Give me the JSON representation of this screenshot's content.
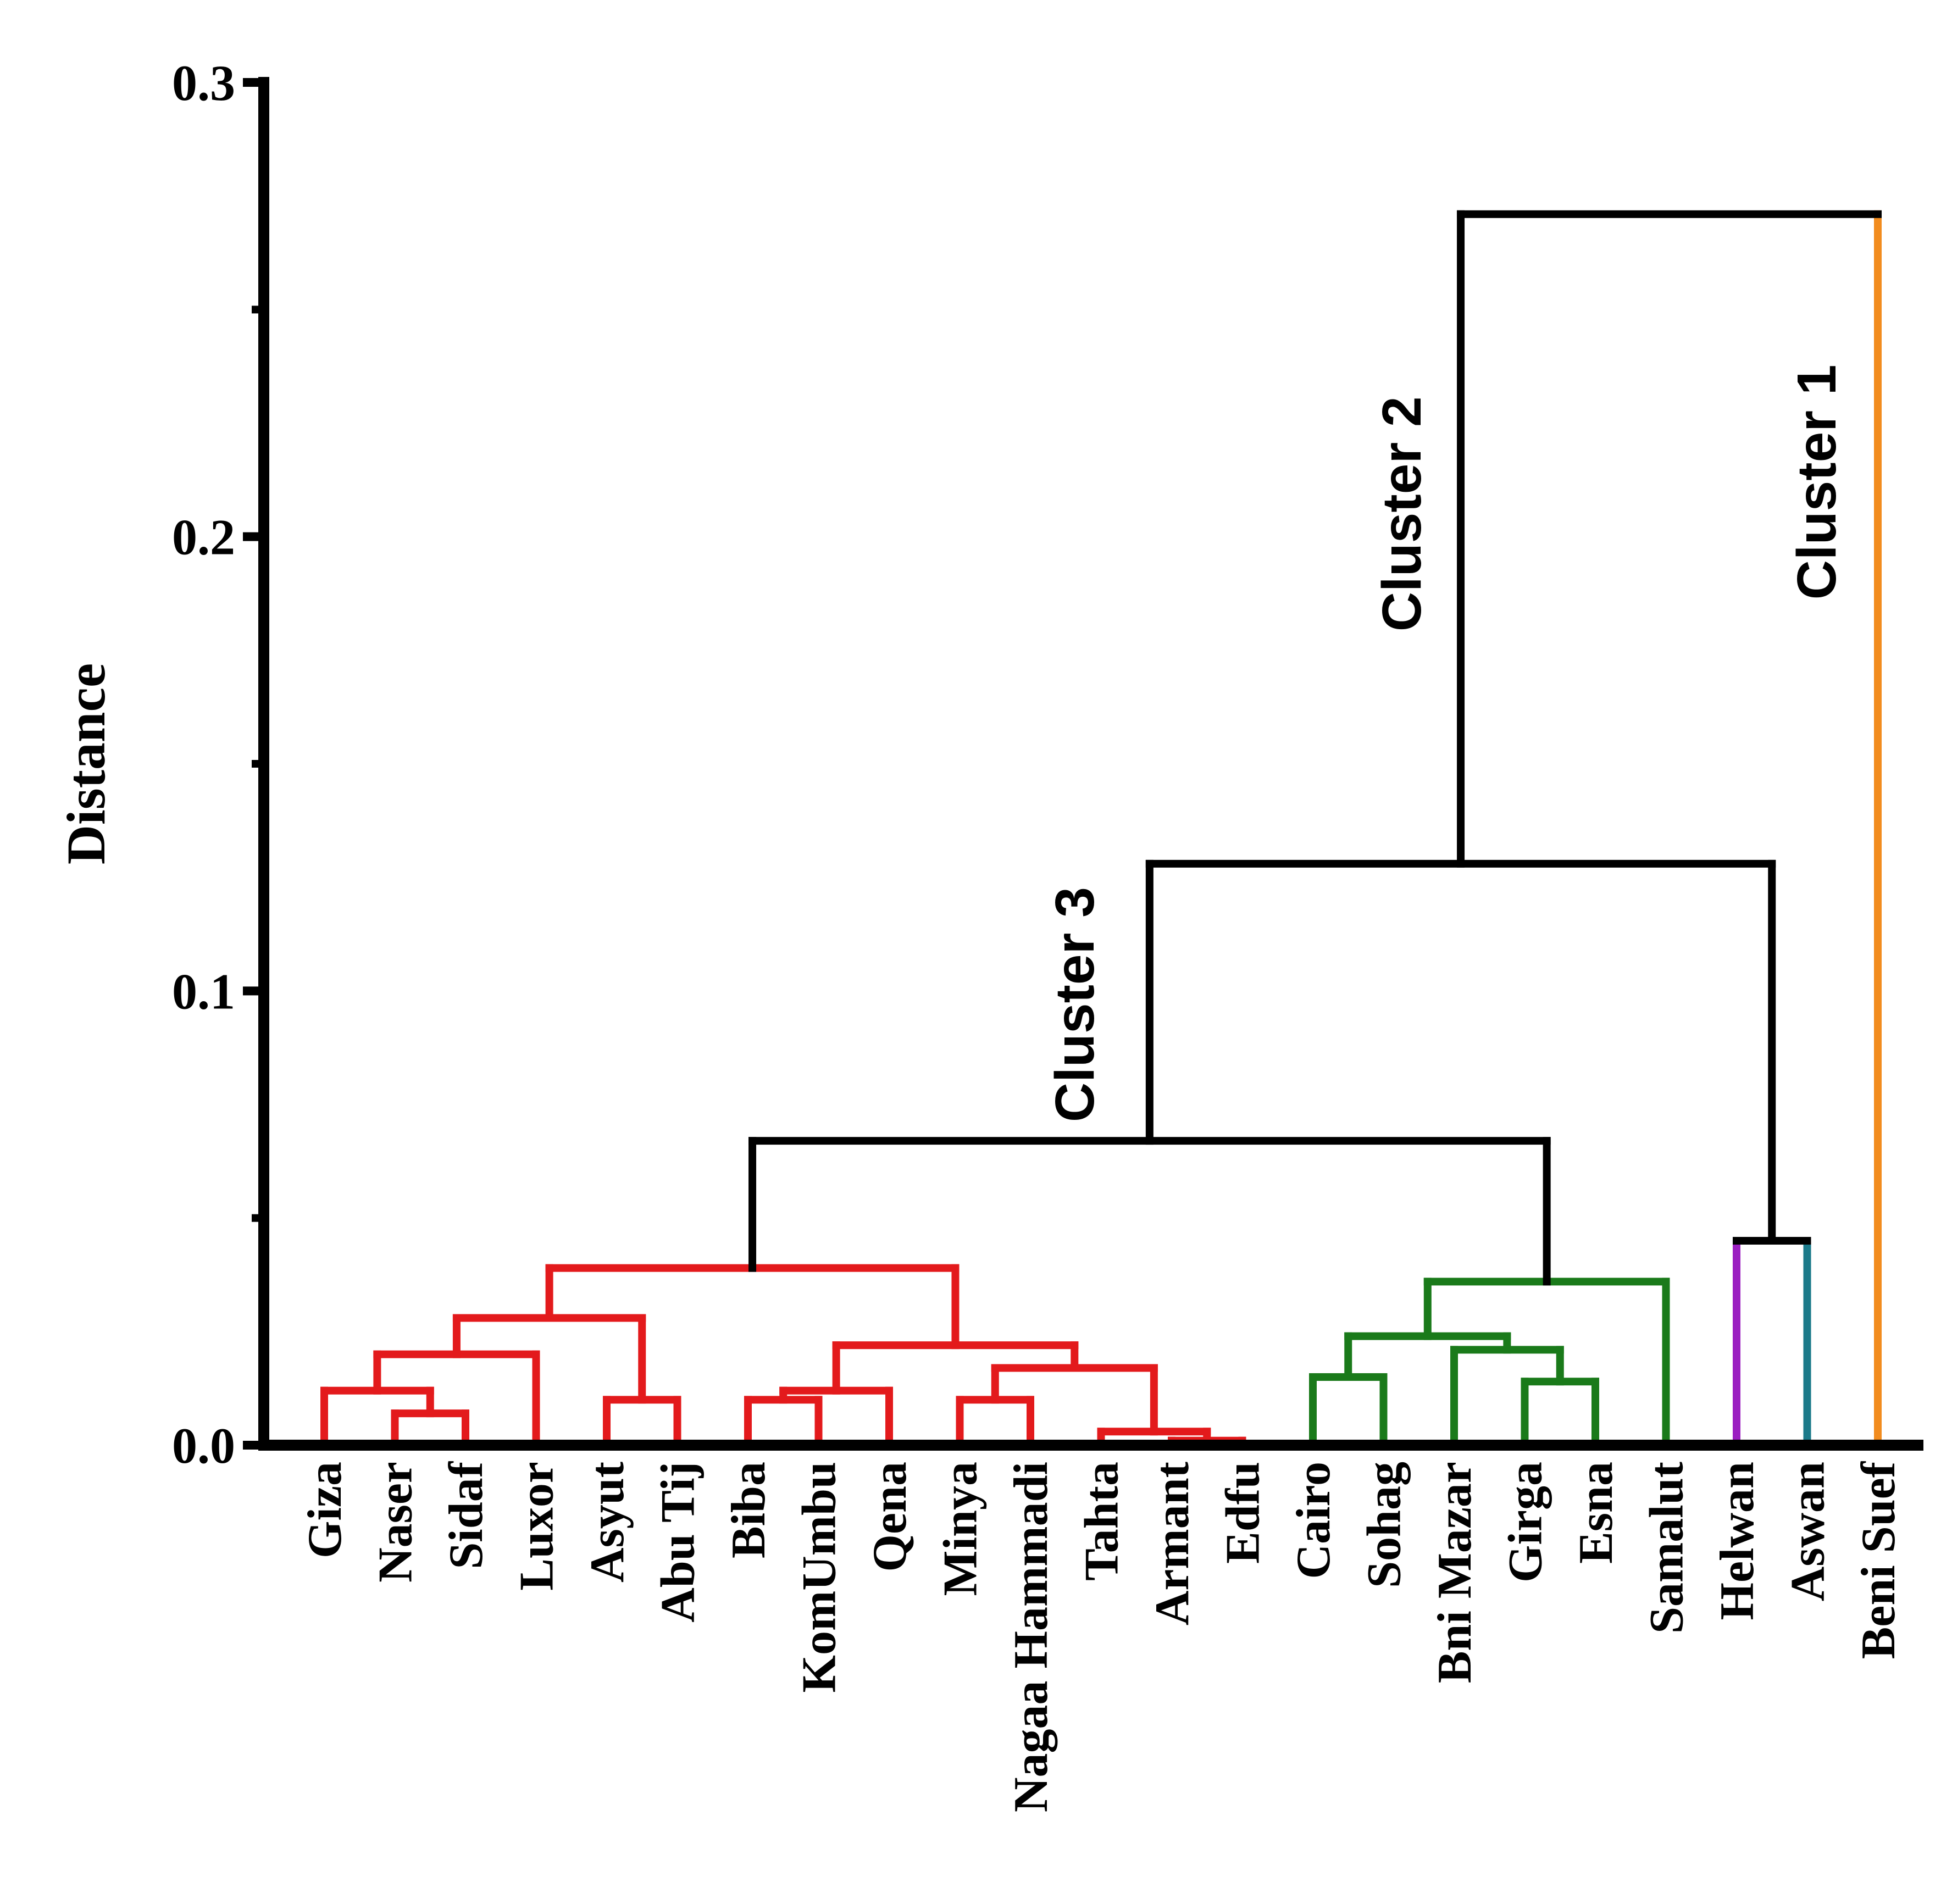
{
  "chart_data": {
    "type": "dendrogram",
    "ylabel": "Distance",
    "xlabel": "",
    "ylim": [
      0,
      0.3
    ],
    "yticks": [
      "0.0",
      "0.1",
      "0.2",
      "0.3"
    ],
    "ytick_values": [
      0,
      0.1,
      0.2,
      0.3
    ],
    "minor_tick_values": [
      0.05,
      0.15,
      0.25
    ],
    "leaves": [
      "Giza",
      "Naser",
      "Sidaf",
      "Luxor",
      "Asyut",
      "Abu Tij",
      "Biba",
      "KomUmbu",
      "Qena",
      "Minya",
      "Nagaa Hammadi",
      "Tahta",
      "Armant",
      "Edfu",
      "Cairo",
      "Sohag",
      "Bni Mazar",
      "Girga",
      "Esna",
      "Samalut",
      "Helwan",
      "Aswan",
      "Beni Suef"
    ],
    "colors": {
      "cluster3_red": "#e31a1c",
      "cluster3_green": "#1a7a1a",
      "helwan": "#9b1fc1",
      "aswan": "#1b7a8a",
      "cluster1": "#f28c1e",
      "link": "#000000"
    },
    "merges": [
      {
        "a": "Naser",
        "b": "Sidaf",
        "height": 0.007,
        "color": "cluster3_red"
      },
      {
        "a": "Giza",
        "b": "m0",
        "height": 0.012,
        "color": "cluster3_red"
      },
      {
        "a": "m1",
        "b": "Luxor",
        "height": 0.02,
        "color": "cluster3_red"
      },
      {
        "a": "Asyut",
        "b": "Abu Tij",
        "height": 0.01,
        "color": "cluster3_red"
      },
      {
        "a": "m2",
        "b": "m3",
        "height": 0.028,
        "color": "cluster3_red"
      },
      {
        "a": "Biba",
        "b": "KomUmbu",
        "height": 0.01,
        "color": "cluster3_red"
      },
      {
        "a": "m5",
        "b": "Qena",
        "height": 0.012,
        "color": "cluster3_red"
      },
      {
        "a": "Minya",
        "b": "Nagaa Hammadi",
        "height": 0.01,
        "color": "cluster3_red"
      },
      {
        "a": "Armant",
        "b": "Edfu",
        "height": 0.001,
        "color": "cluster3_red"
      },
      {
        "a": "Tahta",
        "b": "m8",
        "height": 0.003,
        "color": "cluster3_red"
      },
      {
        "a": "m7",
        "b": "m9",
        "height": 0.017,
        "color": "cluster3_red"
      },
      {
        "a": "m6",
        "b": "m10",
        "height": 0.022,
        "color": "cluster3_red"
      },
      {
        "a": "m4",
        "b": "m11",
        "height": 0.039,
        "color": "cluster3_red"
      },
      {
        "a": "Cairo",
        "b": "Sohag",
        "height": 0.015,
        "color": "cluster3_green"
      },
      {
        "a": "Girga",
        "b": "Esna",
        "height": 0.014,
        "color": "cluster3_green"
      },
      {
        "a": "Bni Mazar",
        "b": "m14",
        "height": 0.021,
        "color": "cluster3_green"
      },
      {
        "a": "m13",
        "b": "m15",
        "height": 0.024,
        "color": "cluster3_green"
      },
      {
        "a": "m16",
        "b": "Samalut",
        "height": 0.036,
        "color": "cluster3_green"
      },
      {
        "a": "m12",
        "b": "m17",
        "height": 0.067,
        "color": "link"
      },
      {
        "a": "Helwan",
        "b": "Aswan",
        "height": 0.045,
        "color": "split"
      },
      {
        "a": "m18",
        "b": "m19",
        "height": 0.128,
        "color": "link"
      },
      {
        "a": "m20",
        "b": "Beni Suef",
        "height": 0.271,
        "color": "split_cluster1"
      }
    ],
    "annotations": [
      "Cluster 1",
      "Cluster 2",
      "Cluster 3"
    ]
  }
}
